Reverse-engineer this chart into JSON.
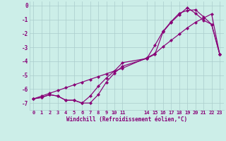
{
  "xlabel": "Windchill (Refroidissement éolien,°C)",
  "background_color": "#cceee8",
  "grid_color": "#aacccc",
  "line_color": "#880077",
  "xlim": [
    -0.5,
    23.5
  ],
  "ylim": [
    -7.5,
    0.3
  ],
  "yticks": [
    0,
    -1,
    -2,
    -3,
    -4,
    -5,
    -6,
    -7
  ],
  "xticks": [
    0,
    1,
    2,
    3,
    4,
    5,
    6,
    7,
    8,
    9,
    10,
    11,
    14,
    15,
    16,
    17,
    18,
    19,
    20,
    21,
    22,
    23
  ],
  "line1_x": [
    0,
    1,
    2,
    3,
    4,
    5,
    6,
    7,
    8,
    9,
    10,
    11,
    14,
    15,
    16,
    17,
    18,
    19,
    20,
    21,
    22,
    23
  ],
  "line1_y": [
    -6.7,
    -6.6,
    -6.4,
    -6.5,
    -6.8,
    -6.8,
    -7.0,
    -6.5,
    -5.8,
    -5.2,
    -4.7,
    -4.1,
    -3.8,
    -3.5,
    -1.9,
    -1.2,
    -0.65,
    -0.15,
    -0.55,
    -1.05,
    -1.35,
    -3.5
  ],
  "line2_x": [
    0,
    1,
    2,
    3,
    4,
    5,
    6,
    7,
    8,
    9,
    10,
    11,
    14,
    15,
    16,
    17,
    18,
    19,
    20,
    21,
    22,
    23
  ],
  "line2_y": [
    -6.7,
    -6.6,
    -6.4,
    -6.5,
    -6.8,
    -6.8,
    -7.0,
    -7.0,
    -6.4,
    -5.5,
    -4.85,
    -4.35,
    -3.8,
    -2.85,
    -1.85,
    -1.15,
    -0.55,
    -0.35,
    -0.3,
    -0.8,
    -1.35,
    -3.5
  ],
  "line3_x": [
    0,
    1,
    2,
    3,
    4,
    5,
    6,
    7,
    8,
    9,
    10,
    11,
    14,
    15,
    16,
    17,
    18,
    19,
    20,
    21,
    22,
    23
  ],
  "line3_y": [
    -6.7,
    -6.5,
    -6.3,
    -6.1,
    -5.9,
    -5.7,
    -5.5,
    -5.3,
    -5.1,
    -4.9,
    -4.7,
    -4.5,
    -3.75,
    -3.45,
    -2.95,
    -2.5,
    -2.05,
    -1.6,
    -1.2,
    -0.9,
    -0.6,
    -3.5
  ]
}
